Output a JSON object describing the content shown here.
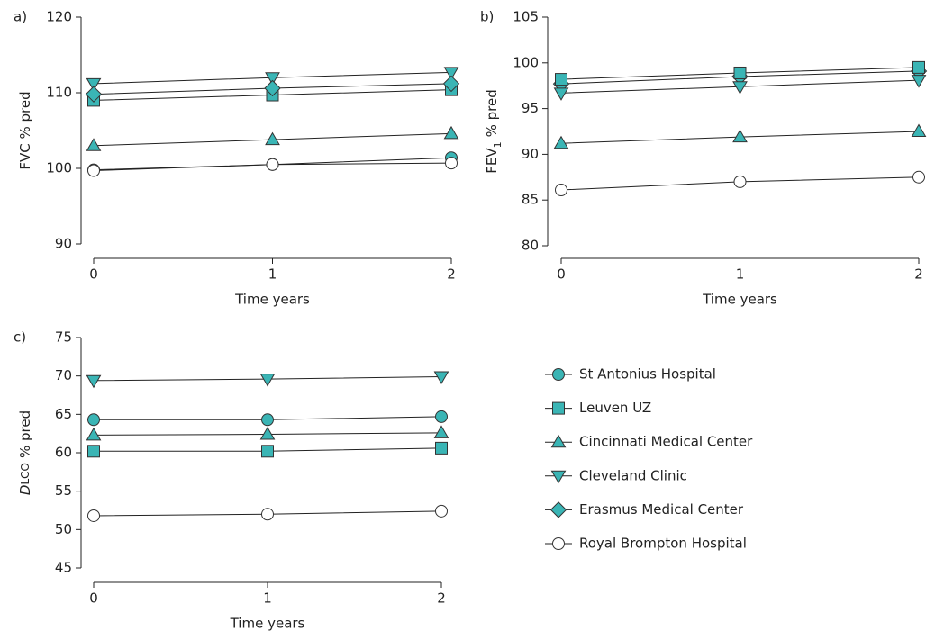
{
  "chart_data": [
    {
      "type": "line",
      "panel_label": "a)",
      "ylabel_parts": [
        {
          "text": "FVC % pred"
        }
      ],
      "xlabel": "Time years",
      "x": [
        0,
        1,
        2
      ],
      "xlim": [
        0,
        2
      ],
      "xticks": [
        0,
        1,
        2
      ],
      "ylim": [
        90,
        120
      ],
      "yticks": [
        90,
        100,
        110,
        120
      ],
      "series": [
        {
          "name": "St Antonius Hospital",
          "marker": "circle",
          "color": "#3ab5b5",
          "values": [
            99.8,
            100.5,
            101.4
          ]
        },
        {
          "name": "Leuven UZ",
          "marker": "square",
          "color": "#3ab5b5",
          "values": [
            109.0,
            109.7,
            110.4
          ]
        },
        {
          "name": "Cincinnati Medical Center",
          "marker": "triangle-up",
          "color": "#3ab5b5",
          "values": [
            103.0,
            103.8,
            104.6
          ]
        },
        {
          "name": "Cleveland Clinic",
          "marker": "triangle-down",
          "color": "#3ab5b5",
          "values": [
            111.2,
            112.0,
            112.7
          ]
        },
        {
          "name": "Erasmus Medical Center",
          "marker": "diamond",
          "color": "#3ab5b5",
          "values": [
            109.8,
            110.6,
            111.2
          ]
        },
        {
          "name": "Royal Brompton Hospital",
          "marker": "circle",
          "color": "#ffffff",
          "values": [
            99.7,
            100.5,
            100.7
          ]
        }
      ]
    },
    {
      "type": "line",
      "panel_label": "b)",
      "ylabel_parts": [
        {
          "text": "FEV"
        },
        {
          "text": "1",
          "sub": true
        },
        {
          "text": "% pred"
        }
      ],
      "xlabel": "Time years",
      "x": [
        0,
        1,
        2
      ],
      "xlim": [
        0,
        2
      ],
      "xticks": [
        0,
        1,
        2
      ],
      "ylim": [
        80,
        105
      ],
      "yticks": [
        80,
        85,
        90,
        95,
        100,
        105
      ],
      "series": [
        {
          "marker": "diamond",
          "color": "#3ab5b5",
          "values": [
            97.7,
            98.5,
            99.1
          ]
        },
        {
          "marker": "square",
          "color": "#3ab5b5",
          "values": [
            98.2,
            98.9,
            99.5
          ]
        },
        {
          "marker": "triangle-down",
          "color": "#3ab5b5",
          "values": [
            96.7,
            97.4,
            98.1
          ]
        },
        {
          "marker": "triangle-up",
          "color": "#3ab5b5",
          "values": [
            91.2,
            91.9,
            92.5
          ]
        },
        {
          "marker": "circle",
          "color": "#ffffff",
          "values": [
            86.1,
            87.0,
            87.5
          ]
        }
      ]
    },
    {
      "type": "line",
      "panel_label": "c)",
      "ylabel_parts": [
        {
          "text": "D",
          "italic": true
        },
        {
          "text": "LCO",
          "small": true
        },
        {
          "text": "% pred"
        }
      ],
      "xlabel": "Time years",
      "x": [
        0,
        1,
        2
      ],
      "xlim": [
        0,
        2
      ],
      "xticks": [
        0,
        1,
        2
      ],
      "ylim": [
        45,
        75
      ],
      "yticks": [
        45,
        50,
        55,
        60,
        65,
        70,
        75
      ],
      "series": [
        {
          "marker": "triangle-down",
          "color": "#3ab5b5",
          "values": [
            69.4,
            69.6,
            69.9
          ]
        },
        {
          "marker": "circle",
          "color": "#3ab5b5",
          "values": [
            64.3,
            64.3,
            64.7
          ]
        },
        {
          "marker": "triangle-up",
          "color": "#3ab5b5",
          "values": [
            62.3,
            62.4,
            62.6
          ]
        },
        {
          "marker": "square",
          "color": "#3ab5b5",
          "values": [
            60.2,
            60.2,
            60.6
          ]
        },
        {
          "marker": "circle",
          "color": "#ffffff",
          "values": [
            51.8,
            52.0,
            52.4
          ]
        }
      ]
    }
  ]
}
